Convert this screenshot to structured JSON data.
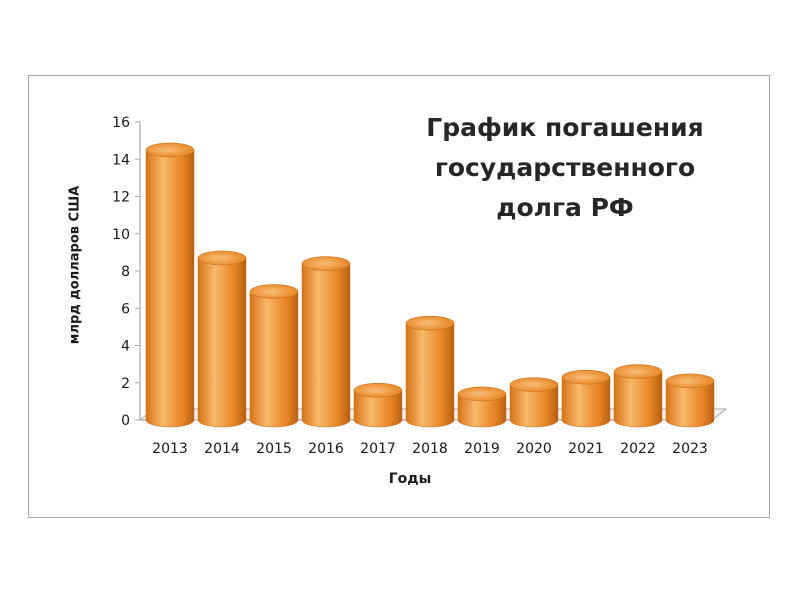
{
  "chart_data": {
    "type": "bar",
    "title_lines": [
      "График погашения",
      "государственного",
      "долга РФ"
    ],
    "xlabel": "Годы",
    "ylabel": "млрд долларов США",
    "categories": [
      "2013",
      "2014",
      "2015",
      "2016",
      "2017",
      "2018",
      "2019",
      "2020",
      "2021",
      "2022",
      "2023"
    ],
    "values": [
      14.5,
      8.7,
      6.9,
      8.4,
      1.6,
      5.2,
      1.4,
      1.9,
      2.3,
      2.6,
      2.1
    ],
    "ylim": [
      0,
      16
    ],
    "yticks": [
      0,
      2,
      4,
      6,
      8,
      10,
      12,
      14,
      16
    ],
    "grid": false,
    "legend": "none",
    "bar_style": "3d-cylinder"
  },
  "colors": {
    "bar_light": "#f8b86a",
    "bar_mid": "#ec8a2a",
    "bar_dark": "#b85e10",
    "bar_top": "#f6a64e",
    "axis": "#a6a6a6",
    "text": "#1a1a1a",
    "frame": "#a6a6a6"
  }
}
